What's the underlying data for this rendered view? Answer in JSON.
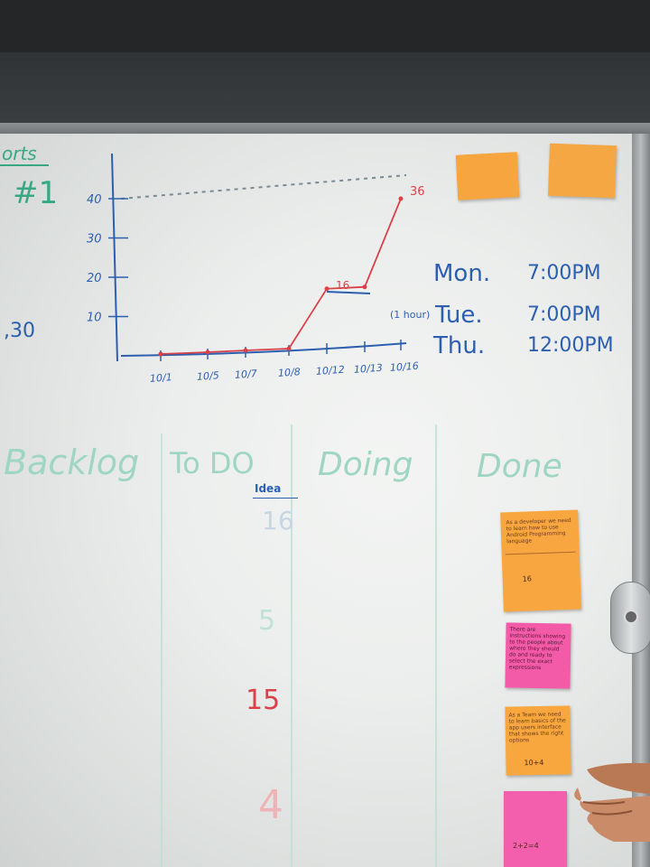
{
  "left_edge": {
    "heading": "orts",
    "number": "#1",
    "value": ",30"
  },
  "chart_data": {
    "type": "line",
    "title": "",
    "xlabel": "",
    "ylabel": "",
    "categories": [
      "10/1",
      "10/5",
      "10/7",
      "10/8",
      "10/12",
      "10/13",
      "10/16"
    ],
    "y_ticks": [
      "10",
      "20",
      "30",
      "40"
    ],
    "ylim": [
      0,
      40
    ],
    "series": [
      {
        "values": [
          0,
          0,
          0,
          0,
          18,
          18,
          40
        ],
        "color": "#d9424a"
      }
    ],
    "annotations": [
      "16",
      "36"
    ],
    "target_line": 40
  },
  "schedule": {
    "rows": [
      {
        "prefix": "",
        "day": "Mon.",
        "time": "7:00PM"
      },
      {
        "prefix": "(1 hour)",
        "day": "Tue.",
        "time": "7:00PM"
      },
      {
        "prefix": "",
        "day": "Thu.",
        "time": "12:00PM"
      }
    ]
  },
  "kanban": {
    "columns": [
      "Backlog",
      "To DO",
      "Doing",
      "Done"
    ],
    "todo_header": "Idea",
    "todo_numbers": [
      {
        "text": "16",
        "color": "faint"
      },
      {
        "text": "5",
        "color": "faint"
      },
      {
        "text": "15",
        "color": "red"
      },
      {
        "text": "4",
        "color": "faint-red"
      }
    ]
  },
  "sticky_notes": {
    "orange_1": {
      "text": "As a developer we need to learn how to use Android Programming language",
      "number": "16"
    },
    "pink_1": {
      "text": "There are instructions showing to the people about where they should do and ready to select the exact expressions",
      "number": ""
    },
    "orange_2": {
      "text": "As a Team we need to learn basics of the app users interface that shows the right options",
      "number": "10+4"
    },
    "pink_2": {
      "text": "",
      "number": "2+2=4"
    }
  },
  "colors": {
    "marker_green": "#3aa784",
    "marker_blue": "#2d5fb0",
    "marker_red": "#d9424a",
    "orange_note": "#f7a53e",
    "pink_note": "#f35aa8"
  }
}
